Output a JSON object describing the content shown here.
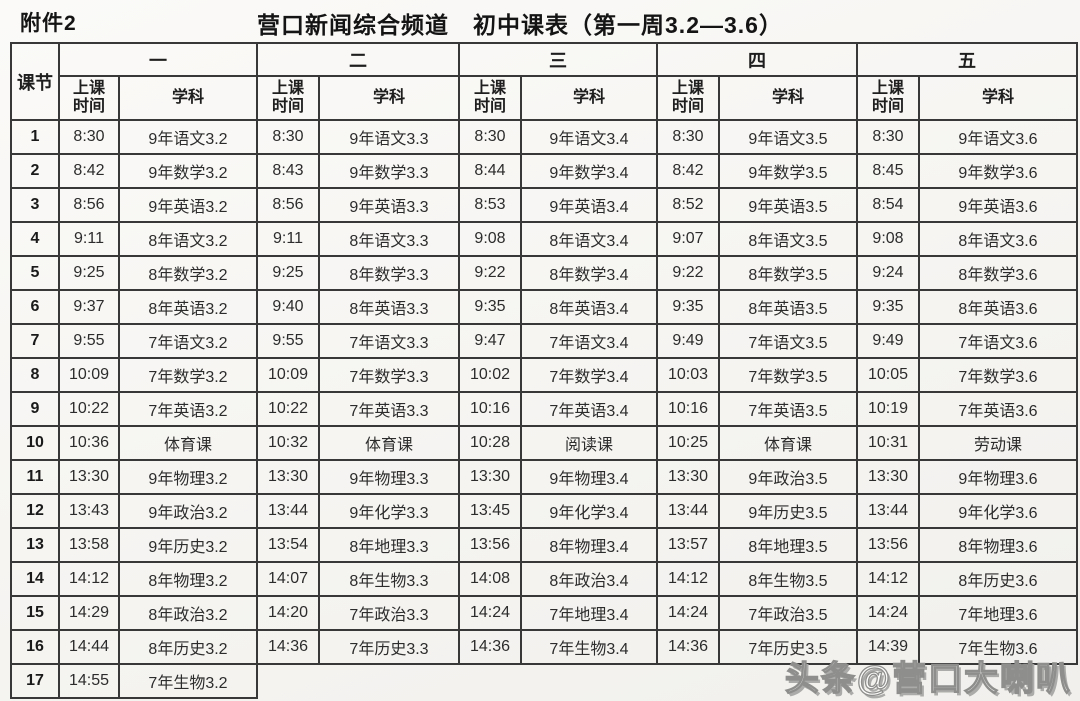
{
  "page": {
    "attachment_label": "附件2",
    "title": "营口新闻综合频道　初中课表（第一周3.2—3.6）",
    "watermark": "头条@营口大喇叭"
  },
  "table": {
    "corner_header": "课节",
    "day_headers": [
      "一",
      "二",
      "三",
      "四",
      "五"
    ],
    "time_header": "上课\n时间",
    "subject_header": "学科",
    "rows": [
      {
        "period": "1",
        "cells": [
          [
            "8:30",
            "9年语文3.2"
          ],
          [
            "8:30",
            "9年语文3.3"
          ],
          [
            "8:30",
            "9年语文3.4"
          ],
          [
            "8:30",
            "9年语文3.5"
          ],
          [
            "8:30",
            "9年语文3.6"
          ]
        ]
      },
      {
        "period": "2",
        "cells": [
          [
            "8:42",
            "9年数学3.2"
          ],
          [
            "8:43",
            "9年数学3.3"
          ],
          [
            "8:44",
            "9年数学3.4"
          ],
          [
            "8:42",
            "9年数学3.5"
          ],
          [
            "8:45",
            "9年数学3.6"
          ]
        ]
      },
      {
        "period": "3",
        "cells": [
          [
            "8:56",
            "9年英语3.2"
          ],
          [
            "8:56",
            "9年英语3.3"
          ],
          [
            "8:53",
            "9年英语3.4"
          ],
          [
            "8:52",
            "9年英语3.5"
          ],
          [
            "8:54",
            "9年英语3.6"
          ]
        ]
      },
      {
        "period": "4",
        "cells": [
          [
            "9:11",
            "8年语文3.2"
          ],
          [
            "9:11",
            "8年语文3.3"
          ],
          [
            "9:08",
            "8年语文3.4"
          ],
          [
            "9:07",
            "8年语文3.5"
          ],
          [
            "9:08",
            "8年语文3.6"
          ]
        ]
      },
      {
        "period": "5",
        "cells": [
          [
            "9:25",
            "8年数学3.2"
          ],
          [
            "9:25",
            "8年数学3.3"
          ],
          [
            "9:22",
            "8年数学3.4"
          ],
          [
            "9:22",
            "8年数学3.5"
          ],
          [
            "9:24",
            "8年数学3.6"
          ]
        ]
      },
      {
        "period": "6",
        "cells": [
          [
            "9:37",
            "8年英语3.2"
          ],
          [
            "9:40",
            "8年英语3.3"
          ],
          [
            "9:35",
            "8年英语3.4"
          ],
          [
            "9:35",
            "8年英语3.5"
          ],
          [
            "9:35",
            "8年英语3.6"
          ]
        ]
      },
      {
        "period": "7",
        "cells": [
          [
            "9:55",
            "7年语文3.2"
          ],
          [
            "9:55",
            "7年语文3.3"
          ],
          [
            "9:47",
            "7年语文3.4"
          ],
          [
            "9:49",
            "7年语文3.5"
          ],
          [
            "9:49",
            "7年语文3.6"
          ]
        ]
      },
      {
        "period": "8",
        "cells": [
          [
            "10:09",
            "7年数学3.2"
          ],
          [
            "10:09",
            "7年数学3.3"
          ],
          [
            "10:02",
            "7年数学3.4"
          ],
          [
            "10:03",
            "7年数学3.5"
          ],
          [
            "10:05",
            "7年数学3.6"
          ]
        ]
      },
      {
        "period": "9",
        "cells": [
          [
            "10:22",
            "7年英语3.2"
          ],
          [
            "10:22",
            "7年英语3.3"
          ],
          [
            "10:16",
            "7年英语3.4"
          ],
          [
            "10:16",
            "7年英语3.5"
          ],
          [
            "10:19",
            "7年英语3.6"
          ]
        ]
      },
      {
        "period": "10",
        "cells": [
          [
            "10:36",
            "体育课"
          ],
          [
            "10:32",
            "体育课"
          ],
          [
            "10:28",
            "阅读课"
          ],
          [
            "10:25",
            "体育课"
          ],
          [
            "10:31",
            "劳动课"
          ]
        ]
      },
      {
        "period": "11",
        "cells": [
          [
            "13:30",
            "9年物理3.2"
          ],
          [
            "13:30",
            "9年物理3.3"
          ],
          [
            "13:30",
            "9年物理3.4"
          ],
          [
            "13:30",
            "9年政治3.5"
          ],
          [
            "13:30",
            "9年物理3.6"
          ]
        ]
      },
      {
        "period": "12",
        "cells": [
          [
            "13:43",
            "9年政治3.2"
          ],
          [
            "13:44",
            "9年化学3.3"
          ],
          [
            "13:45",
            "9年化学3.4"
          ],
          [
            "13:44",
            "9年历史3.5"
          ],
          [
            "13:44",
            "9年化学3.6"
          ]
        ]
      },
      {
        "period": "13",
        "cells": [
          [
            "13:58",
            "9年历史3.2"
          ],
          [
            "13:54",
            "8年地理3.3"
          ],
          [
            "13:56",
            "8年物理3.4"
          ],
          [
            "13:57",
            "8年地理3.5"
          ],
          [
            "13:56",
            "8年物理3.6"
          ]
        ]
      },
      {
        "period": "14",
        "cells": [
          [
            "14:12",
            "8年物理3.2"
          ],
          [
            "14:07",
            "8年生物3.3"
          ],
          [
            "14:08",
            "8年政治3.4"
          ],
          [
            "14:12",
            "8年生物3.5"
          ],
          [
            "14:12",
            "8年历史3.6"
          ]
        ]
      },
      {
        "period": "15",
        "cells": [
          [
            "14:29",
            "8年政治3.2"
          ],
          [
            "14:20",
            "7年政治3.3"
          ],
          [
            "14:24",
            "7年地理3.4"
          ],
          [
            "14:24",
            "7年政治3.5"
          ],
          [
            "14:24",
            "7年地理3.6"
          ]
        ]
      },
      {
        "period": "16",
        "cells": [
          [
            "14:44",
            "8年历史3.2"
          ],
          [
            "14:36",
            "7年历史3.3"
          ],
          [
            "14:36",
            "7年生物3.4"
          ],
          [
            "14:36",
            "7年历史3.5"
          ],
          [
            "14:39",
            "7年生物3.6"
          ]
        ]
      },
      {
        "period": "17",
        "cells": [
          [
            "14:55",
            "7年生物3.2"
          ],
          null,
          null,
          null,
          null
        ]
      }
    ]
  }
}
